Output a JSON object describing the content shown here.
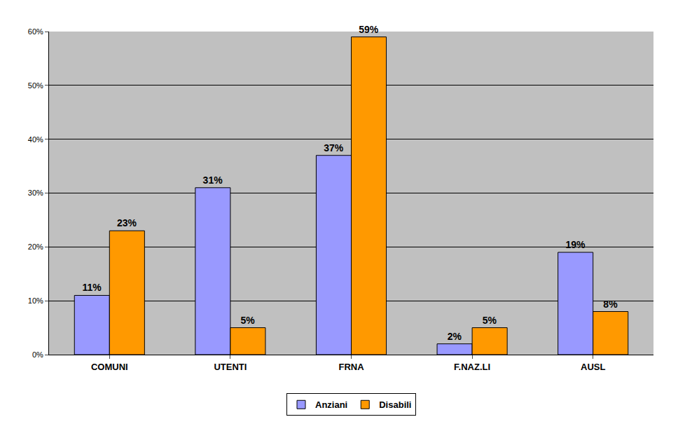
{
  "chart_data": {
    "type": "bar",
    "categories": [
      "COMUNI",
      "UTENTI",
      "FRNA",
      "F.NAZ.LI",
      "AUSL"
    ],
    "series": [
      {
        "name": "Anziani",
        "color": "#9999ff",
        "values": [
          11,
          31,
          37,
          2,
          19
        ],
        "value_labels": [
          "11%",
          "31%",
          "37%",
          "2%",
          "19%"
        ]
      },
      {
        "name": "Disabili",
        "color": "#ff9900",
        "values": [
          23,
          5,
          59,
          5,
          8
        ],
        "value_labels": [
          "23%",
          "5%",
          "59%",
          "5%",
          "8%"
        ]
      }
    ],
    "ylim": [
      0,
      60
    ],
    "yticks": [
      {
        "value": 0,
        "label": "0%"
      },
      {
        "value": 10,
        "label": "10%"
      },
      {
        "value": 20,
        "label": "20%"
      },
      {
        "value": 30,
        "label": "30%"
      },
      {
        "value": 40,
        "label": "40%"
      },
      {
        "value": 50,
        "label": "50%"
      },
      {
        "value": 60,
        "label": "60%"
      }
    ],
    "grid": true,
    "legend": "bottom",
    "data_labels": true
  }
}
